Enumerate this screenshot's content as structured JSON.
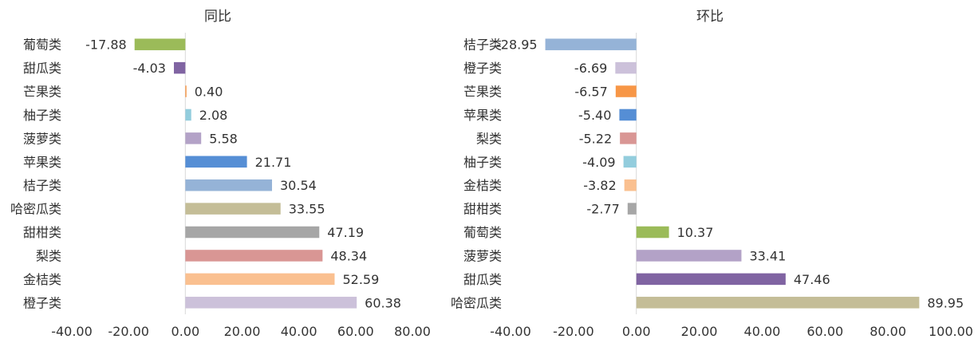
{
  "chart_data": [
    {
      "type": "bar",
      "orientation": "horizontal",
      "title": "同比",
      "categories": [
        "葡萄类",
        "甜瓜类",
        "芒果类",
        "柚子类",
        "菠萝类",
        "苹果类",
        "桔子类",
        "哈密瓜类",
        "甜柑类",
        "梨类",
        "金桔类",
        "橙子类"
      ],
      "values": [
        -17.88,
        -4.03,
        0.4,
        2.08,
        5.58,
        21.71,
        30.54,
        33.55,
        47.19,
        48.34,
        52.59,
        60.38
      ],
      "value_labels": [
        "-17.88",
        "-4.03",
        "0.40",
        "2.08",
        "5.58",
        "21.71",
        "30.54",
        "33.55",
        "47.19",
        "48.34",
        "52.59",
        "60.38"
      ],
      "colors": [
        "#9bbb59",
        "#8064a2",
        "#f79646",
        "#93cddd",
        "#b3a2c7",
        "#558ed5",
        "#95b3d7",
        "#c4bd97",
        "#a6a6a6",
        "#d99694",
        "#fac090",
        "#ccc1da"
      ],
      "xlim": [
        -40,
        80
      ],
      "xticks": [
        "-40.00",
        "-20.00",
        "0.00",
        "20.00",
        "40.00",
        "60.00",
        "80.00"
      ],
      "xtick_values": [
        -40,
        -20,
        0,
        20,
        40,
        60,
        80
      ],
      "grid": false
    },
    {
      "type": "bar",
      "orientation": "horizontal",
      "title": "环比",
      "categories": [
        "桔子类",
        "橙子类",
        "芒果类",
        "苹果类",
        "梨类",
        "柚子类",
        "金桔类",
        "甜柑类",
        "葡萄类",
        "菠萝类",
        "甜瓜类",
        "哈密瓜类"
      ],
      "values": [
        -28.95,
        -6.69,
        -6.57,
        -5.4,
        -5.22,
        -4.09,
        -3.82,
        -2.77,
        10.37,
        33.41,
        47.46,
        89.95
      ],
      "value_labels": [
        "-28.95",
        "-6.69",
        "-6.57",
        "-5.40",
        "-5.22",
        "-4.09",
        "-3.82",
        "-2.77",
        "10.37",
        "33.41",
        "47.46",
        "89.95"
      ],
      "colors": [
        "#95b3d7",
        "#ccc1da",
        "#f79646",
        "#558ed5",
        "#d99694",
        "#93cddd",
        "#fac090",
        "#a6a6a6",
        "#9bbb59",
        "#b3a2c7",
        "#8064a2",
        "#c4bd97"
      ],
      "xlim": [
        -40,
        100
      ],
      "xticks": [
        "-40.00",
        "-20.00",
        "0.00",
        "20.00",
        "40.00",
        "60.00",
        "80.00",
        "100.00"
      ],
      "xtick_values": [
        -40,
        -20,
        0,
        20,
        40,
        60,
        80,
        100
      ],
      "grid": false
    }
  ]
}
